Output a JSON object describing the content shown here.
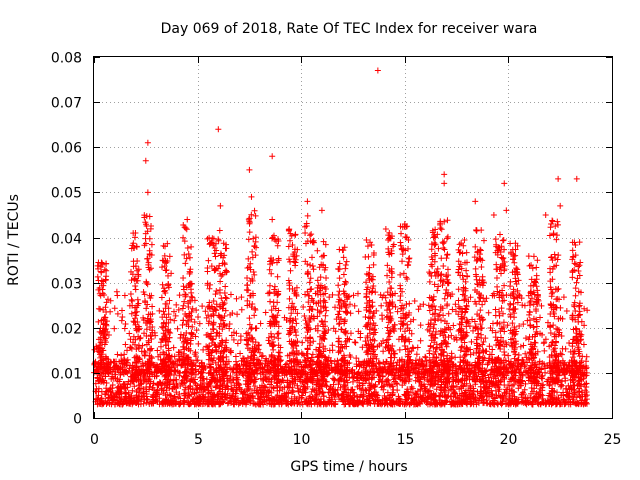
{
  "chart_data": {
    "type": "scatter",
    "title": "Day 069 of 2018, Rate Of TEC Index for receiver wara",
    "xlabel": "GPS time / hours",
    "ylabel": "ROTI / TECUs",
    "xlim": [
      0,
      25
    ],
    "ylim": [
      0,
      0.08
    ],
    "x_ticks": [
      0,
      5,
      10,
      15,
      20,
      25
    ],
    "x_tick_labels": [
      "0",
      "5",
      "10",
      "15",
      "20",
      "25"
    ],
    "y_ticks": [
      0,
      0.01,
      0.02,
      0.03,
      0.04,
      0.05,
      0.06,
      0.07,
      0.08
    ],
    "y_tick_labels": [
      "0",
      "0.01",
      "0.02",
      "0.03",
      "0.04",
      "0.05",
      "0.06",
      "0.07",
      "0.08"
    ],
    "grid": true,
    "marker": "+",
    "marker_color": "#ff0000",
    "data_x_range": [
      0,
      23.8
    ],
    "series": [
      {
        "name": "ROTI",
        "notable_points": [
          {
            "x": 13.7,
            "y": 0.077
          },
          {
            "x": 6.0,
            "y": 0.064
          },
          {
            "x": 2.6,
            "y": 0.061
          },
          {
            "x": 8.6,
            "y": 0.058
          },
          {
            "x": 2.5,
            "y": 0.057
          },
          {
            "x": 7.5,
            "y": 0.055
          },
          {
            "x": 16.9,
            "y": 0.054
          },
          {
            "x": 22.4,
            "y": 0.053
          },
          {
            "x": 23.3,
            "y": 0.053
          },
          {
            "x": 19.8,
            "y": 0.052
          },
          {
            "x": 2.6,
            "y": 0.05
          },
          {
            "x": 7.6,
            "y": 0.049
          },
          {
            "x": 19.9,
            "y": 0.046
          },
          {
            "x": 6.1,
            "y": 0.047
          },
          {
            "x": 11.0,
            "y": 0.046
          },
          {
            "x": 10.3,
            "y": 0.048
          },
          {
            "x": 16.9,
            "y": 0.052
          },
          {
            "x": 18.4,
            "y": 0.048
          },
          {
            "x": 22.5,
            "y": 0.047
          },
          {
            "x": 4.5,
            "y": 0.044
          },
          {
            "x": 15.0,
            "y": 0.043
          },
          {
            "x": 2.0,
            "y": 0.041
          },
          {
            "x": 8.6,
            "y": 0.044
          },
          {
            "x": 19.3,
            "y": 0.045
          },
          {
            "x": 21.8,
            "y": 0.045
          }
        ],
        "bursts": [
          {
            "center": 0.4,
            "peak": 0.035
          },
          {
            "center": 2.0,
            "peak": 0.041
          },
          {
            "center": 2.6,
            "peak": 0.045
          },
          {
            "center": 3.5,
            "peak": 0.039
          },
          {
            "center": 4.5,
            "peak": 0.044
          },
          {
            "center": 5.7,
            "peak": 0.04
          },
          {
            "center": 6.2,
            "peak": 0.042
          },
          {
            "center": 7.6,
            "peak": 0.046
          },
          {
            "center": 8.7,
            "peak": 0.041
          },
          {
            "center": 9.6,
            "peak": 0.043
          },
          {
            "center": 10.4,
            "peak": 0.045
          },
          {
            "center": 11.0,
            "peak": 0.04
          },
          {
            "center": 12.0,
            "peak": 0.038
          },
          {
            "center": 13.3,
            "peak": 0.04
          },
          {
            "center": 14.3,
            "peak": 0.042
          },
          {
            "center": 15.0,
            "peak": 0.043
          },
          {
            "center": 16.4,
            "peak": 0.042
          },
          {
            "center": 16.9,
            "peak": 0.044
          },
          {
            "center": 17.8,
            "peak": 0.04
          },
          {
            "center": 18.6,
            "peak": 0.042
          },
          {
            "center": 19.6,
            "peak": 0.041
          },
          {
            "center": 20.3,
            "peak": 0.039
          },
          {
            "center": 21.2,
            "peak": 0.036
          },
          {
            "center": 22.2,
            "peak": 0.045
          },
          {
            "center": 23.3,
            "peak": 0.039
          }
        ],
        "baseline_range": [
          0.003,
          0.012
        ],
        "summary": "Dense scatter of ROTI values, mostly 0.004-0.012 TECU/min with frequent bursts to 0.03-0.045 and isolated maxima up to 0.077 at ~13.7 h"
      }
    ]
  }
}
